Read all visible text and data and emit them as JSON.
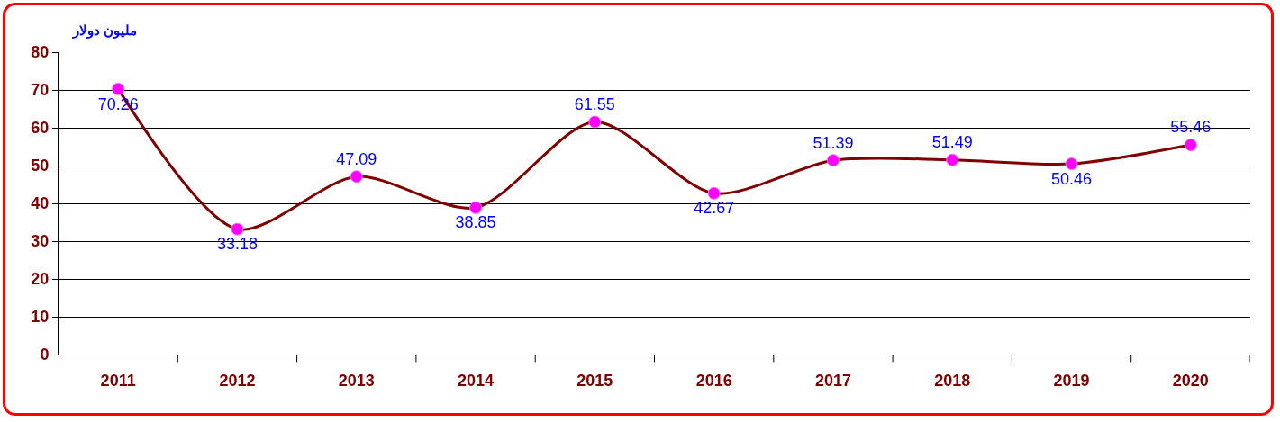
{
  "chart_data": {
    "type": "line",
    "ylabel": "مليون دولار",
    "categories": [
      "2011",
      "2012",
      "2013",
      "2014",
      "2015",
      "2016",
      "2017",
      "2018",
      "2019",
      "2020"
    ],
    "series": [
      {
        "color": "#800000",
        "values": [
          70.26,
          33.18,
          47.09,
          38.85,
          61.55,
          42.67,
          51.39,
          51.49,
          50.46,
          55.46
        ]
      }
    ],
    "ylim": [
      0,
      80
    ],
    "yticks": [
      0,
      10,
      20,
      30,
      40,
      50,
      60,
      70,
      80
    ],
    "grid": "y",
    "legend": false,
    "marker": "circle",
    "line_style": "solid",
    "data_labels": true
  }
}
